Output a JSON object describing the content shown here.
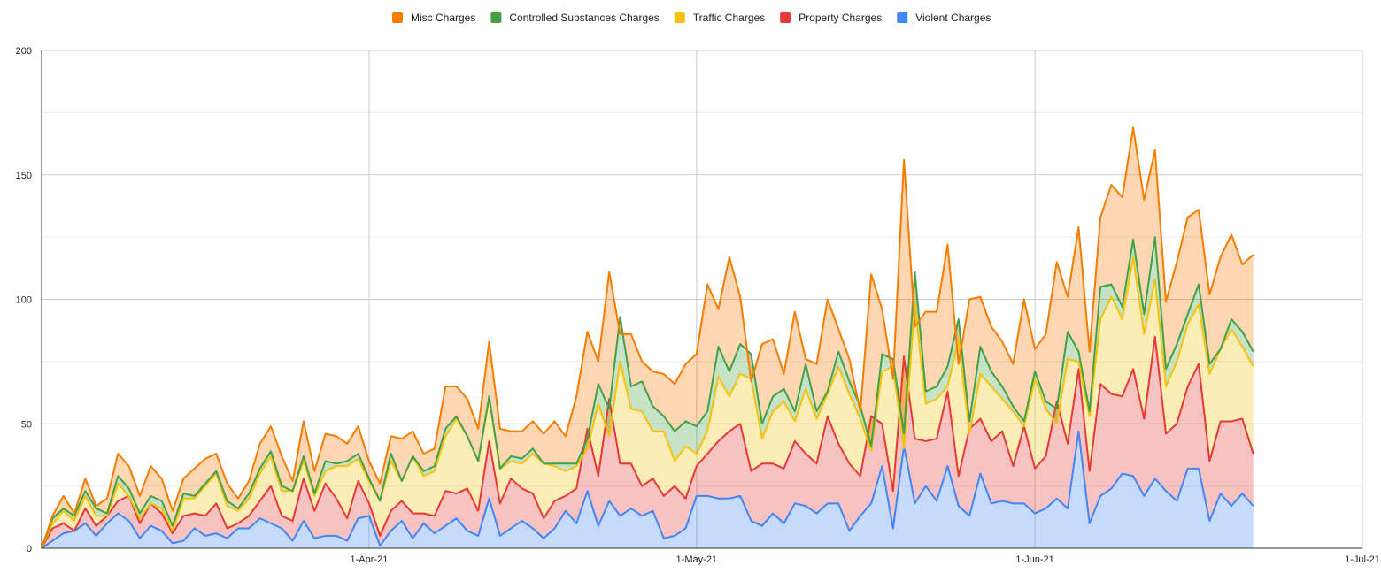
{
  "chart_data": {
    "type": "area",
    "stacked": true,
    "title": "",
    "xlabel": "",
    "ylabel": "",
    "ylim": [
      0,
      200
    ],
    "y_ticks": [
      "0",
      "50",
      "100",
      "150",
      "200"
    ],
    "x_tick_labels": [
      "1-Apr-21",
      "1-May-21",
      "1-Jun-21",
      "1-Jul-21"
    ],
    "x_tick_dates": [
      "2021-04-01",
      "2021-05-01",
      "2021-06-01",
      "2021-07-01"
    ],
    "x_range": [
      "2021-03-02",
      "2021-07-01"
    ],
    "grid": true,
    "legend_position": "top",
    "legend": [
      {
        "name": "Misc Charges",
        "color": "#f57c00"
      },
      {
        "name": "Controlled Substances Charges",
        "color": "#43a047"
      },
      {
        "name": "Traffic Charges",
        "color": "#f4c20d"
      },
      {
        "name": "Property Charges",
        "color": "#e53935"
      },
      {
        "name": "Violent Charges",
        "color": "#4285f4"
      }
    ],
    "cumulative_totals": {
      "violent": [
        0,
        3,
        6,
        7,
        10,
        5,
        10,
        14,
        11,
        4,
        9,
        7,
        2,
        3,
        8,
        5,
        6,
        4,
        8,
        8,
        12,
        10,
        8,
        3,
        11,
        4,
        5,
        5,
        3,
        12,
        13,
        1,
        7,
        11,
        4,
        10,
        6,
        9,
        12,
        7,
        5,
        20,
        5,
        8,
        11,
        8,
        4,
        8,
        15,
        10,
        23,
        9,
        19,
        13,
        16,
        13,
        15,
        4,
        5,
        8,
        21,
        21,
        20,
        20,
        21,
        11,
        9,
        14,
        10,
        18,
        17,
        14,
        18,
        18,
        7,
        13,
        18,
        33,
        8,
        41,
        18,
        25,
        19,
        33,
        17,
        13,
        30,
        18,
        19,
        18,
        18,
        14,
        16,
        20,
        16,
        47,
        10,
        21,
        24,
        30,
        29,
        21,
        28,
        23,
        19,
        32,
        32,
        11,
        22,
        17,
        22,
        17
      ],
      "property": [
        0,
        8,
        10,
        7,
        16,
        9,
        13,
        19,
        21,
        10,
        18,
        14,
        6,
        13,
        14,
        13,
        18,
        8,
        10,
        13,
        19,
        25,
        13,
        11,
        28,
        15,
        26,
        20,
        12,
        27,
        18,
        5,
        15,
        19,
        14,
        14,
        13,
        23,
        22,
        24,
        15,
        43,
        18,
        28,
        24,
        22,
        12,
        19,
        21,
        24,
        48,
        29,
        60,
        34,
        34,
        25,
        28,
        21,
        25,
        20,
        33,
        38,
        43,
        47,
        50,
        31,
        34,
        34,
        32,
        43,
        38,
        34,
        53,
        42,
        34,
        29,
        53,
        50,
        23,
        77,
        44,
        43,
        44,
        63,
        29,
        48,
        52,
        43,
        47,
        33,
        49,
        32,
        37,
        59,
        42,
        72,
        31,
        66,
        62,
        61,
        72,
        52,
        85,
        46,
        50,
        65,
        74,
        35,
        51,
        51,
        52,
        38
      ],
      "traffic": [
        0,
        10,
        15,
        11,
        21,
        13,
        13,
        26,
        21,
        12,
        18,
        16,
        7,
        20,
        20,
        25,
        30,
        17,
        15,
        20,
        30,
        37,
        23,
        23,
        35,
        21,
        31,
        33,
        33,
        36,
        27,
        19,
        35,
        27,
        37,
        29,
        31,
        45,
        52,
        45,
        35,
        60,
        32,
        35,
        34,
        38,
        34,
        33,
        31,
        33,
        40,
        58,
        45,
        75,
        56,
        55,
        47,
        47,
        35,
        41,
        38,
        47,
        69,
        61,
        70,
        68,
        44,
        55,
        59,
        51,
        64,
        52,
        62,
        73,
        62,
        52,
        39,
        71,
        73,
        40,
        98,
        58,
        60,
        65,
        84,
        46,
        70,
        65,
        60,
        55,
        49,
        68,
        56,
        50,
        76,
        75,
        53,
        92,
        101,
        92,
        117,
        86,
        108,
        65,
        75,
        90,
        98,
        70,
        80,
        88,
        81,
        73
      ],
      "controlled": [
        0,
        12,
        16,
        13,
        23,
        16,
        14,
        29,
        24,
        14,
        21,
        19,
        9,
        22,
        21,
        26,
        31,
        19,
        16,
        22,
        32,
        39,
        25,
        23,
        37,
        22,
        35,
        34,
        35,
        38,
        28,
        19,
        38,
        27,
        37,
        31,
        33,
        48,
        53,
        45,
        35,
        61,
        32,
        37,
        36,
        40,
        34,
        34,
        34,
        34,
        44,
        66,
        56,
        93,
        65,
        67,
        57,
        53,
        47,
        51,
        49,
        55,
        81,
        71,
        82,
        78,
        50,
        61,
        64,
        55,
        74,
        55,
        63,
        79,
        67,
        57,
        41,
        78,
        76,
        46,
        111,
        63,
        65,
        73,
        92,
        51,
        81,
        71,
        65,
        57,
        51,
        71,
        59,
        56,
        87,
        79,
        55,
        105,
        106,
        97,
        124,
        94,
        125,
        72,
        82,
        94,
        106,
        74,
        80,
        92,
        87,
        79
      ],
      "misc": [
        0,
        13,
        21,
        14,
        28,
        17,
        20,
        38,
        33,
        21,
        33,
        28,
        15,
        28,
        32,
        36,
        38,
        26,
        20,
        27,
        42,
        49,
        37,
        27,
        51,
        31,
        46,
        45,
        42,
        49,
        35,
        26,
        45,
        44,
        47,
        38,
        40,
        65,
        65,
        60,
        48,
        83,
        48,
        47,
        47,
        51,
        46,
        51,
        45,
        61,
        87,
        75,
        111,
        86,
        86,
        75,
        71,
        70,
        66,
        74,
        78,
        106,
        96,
        117,
        101,
        67,
        82,
        84,
        70,
        95,
        76,
        74,
        100,
        88,
        76,
        55,
        110,
        96,
        68,
        156,
        89,
        95,
        95,
        122,
        74,
        100,
        101,
        89,
        83,
        74,
        100,
        80,
        86,
        115,
        101,
        129,
        79,
        133,
        146,
        141,
        169,
        140,
        160,
        99,
        115,
        133,
        136,
        102,
        117,
        126,
        114,
        118
      ]
    }
  }
}
